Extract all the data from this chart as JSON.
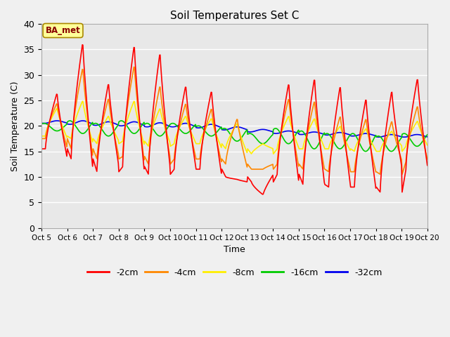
{
  "title": "Soil Temperatures Set C",
  "xlabel": "Time",
  "ylabel": "Soil Temperature (C)",
  "ylim": [
    0,
    40
  ],
  "background_color": "#e8e8e8",
  "fig_background": "#f0f0f0",
  "annotation_text": "BA_met",
  "annotation_bg": "#ffff99",
  "annotation_border": "#aa8800",
  "annotation_text_color": "#880000",
  "colors": {
    "-2cm": "#ff0000",
    "-4cm": "#ff8800",
    "-8cm": "#ffee00",
    "-16cm": "#00cc00",
    "-32cm": "#0000ee"
  },
  "tick_labels": [
    "Oct 5",
    "Oct 6",
    "Oct 7",
    "Oct 8",
    "Oct 9",
    "Oct 10",
    "Oct 11",
    "Oct 12",
    "Oct 13",
    "Oct 14",
    "Oct 15",
    "Oct 16",
    "Oct 17",
    "Oct 18",
    "Oct 19",
    "Oct 20"
  ],
  "n_days": 15,
  "lw": 1.2,
  "series": {
    "-2cm": {
      "peaks": [
        26.5,
        36.5,
        28.5,
        36.0,
        34.5,
        28.0,
        27.0,
        9.5,
        6.5,
        28.5,
        29.5,
        28.0,
        25.5,
        27.0,
        29.5
      ],
      "troughs": [
        15.5,
        13.5,
        11.0,
        12.0,
        10.5,
        11.5,
        11.5,
        10.0,
        9.0,
        10.5,
        8.5,
        8.0,
        8.0,
        7.0,
        11.5
      ],
      "base": [
        20.5,
        20.3,
        20.1,
        20.0,
        19.8,
        19.5,
        19.2,
        18.5,
        18.0,
        17.5,
        17.0,
        17.0,
        17.0,
        17.0,
        17.0
      ]
    },
    "-4cm": {
      "peaks": [
        24.5,
        31.5,
        25.5,
        32.0,
        28.0,
        24.5,
        23.5,
        21.5,
        11.5,
        25.5,
        25.0,
        22.0,
        21.5,
        21.0,
        24.0
      ],
      "troughs": [
        17.5,
        15.5,
        13.5,
        14.0,
        12.5,
        13.5,
        13.5,
        12.5,
        11.5,
        12.5,
        11.5,
        11.0,
        11.0,
        10.5,
        13.0
      ],
      "base": [
        20.5,
        20.3,
        20.1,
        20.0,
        19.8,
        19.5,
        19.2,
        18.5,
        18.0,
        17.5,
        17.0,
        17.0,
        17.0,
        17.0,
        17.0
      ]
    },
    "-8cm": {
      "peaks": [
        23.5,
        25.0,
        22.0,
        25.0,
        23.5,
        22.0,
        21.5,
        20.5,
        16.5,
        22.0,
        21.5,
        20.0,
        19.5,
        19.0,
        21.0
      ],
      "troughs": [
        18.0,
        17.5,
        16.5,
        17.0,
        16.0,
        16.5,
        16.5,
        15.5,
        14.5,
        15.5,
        15.5,
        15.5,
        15.0,
        15.0,
        16.0
      ],
      "base": [
        20.5,
        20.3,
        20.1,
        20.0,
        19.8,
        19.5,
        19.2,
        18.5,
        18.0,
        17.5,
        17.0,
        17.0,
        17.0,
        17.0,
        17.0
      ]
    },
    "-16cm": {
      "peaks": [
        20.5,
        21.0,
        20.5,
        21.0,
        20.5,
        20.5,
        20.0,
        19.5,
        18.5,
        19.5,
        19.0,
        18.5,
        18.5,
        18.0,
        18.5
      ],
      "troughs": [
        19.0,
        18.5,
        18.0,
        18.5,
        18.0,
        18.5,
        18.0,
        17.0,
        16.5,
        16.5,
        15.5,
        15.5,
        15.0,
        15.0,
        16.0
      ],
      "base": [
        20.0,
        20.0,
        19.8,
        19.8,
        19.5,
        19.5,
        19.0,
        18.5,
        18.0,
        17.5,
        17.0,
        17.0,
        17.0,
        17.0,
        17.0
      ]
    },
    "-32cm": {
      "peaks": [
        21.0,
        21.0,
        20.8,
        20.8,
        20.6,
        20.5,
        20.3,
        19.8,
        19.3,
        19.0,
        18.8,
        18.7,
        18.5,
        18.3,
        18.3
      ],
      "troughs": [
        20.5,
        20.3,
        20.1,
        20.0,
        19.8,
        19.8,
        19.6,
        19.2,
        18.8,
        18.5,
        18.3,
        18.2,
        18.0,
        17.8,
        17.8
      ],
      "base": [
        20.7,
        20.6,
        20.5,
        20.4,
        20.3,
        20.2,
        20.0,
        19.5,
        19.1,
        18.8,
        18.6,
        18.5,
        18.3,
        18.1,
        18.1
      ]
    }
  }
}
